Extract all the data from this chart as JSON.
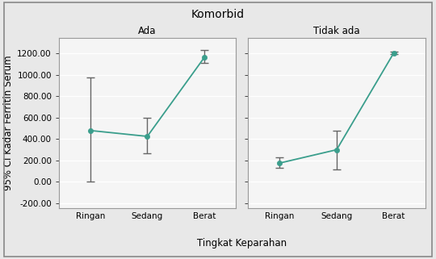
{
  "title": "Komorbid",
  "xlabel": "Tingkat Keparahan",
  "ylabel": "95% CI Kadar Ferritin Serum",
  "panels": [
    {
      "label": "Ada",
      "categories": [
        "Ringan",
        "Sedang",
        "Berat"
      ],
      "means": [
        480,
        425,
        1165
      ],
      "ci_low": [
        0,
        265,
        1110
      ],
      "ci_high": [
        975,
        600,
        1230
      ]
    },
    {
      "label": "Tidak ada",
      "categories": [
        "Ringan",
        "Sedang",
        "Berat"
      ],
      "means": [
        175,
        300,
        1205
      ],
      "ci_low": [
        130,
        115,
        1195
      ],
      "ci_high": [
        230,
        475,
        1215
      ]
    }
  ],
  "ylim": [
    -250,
    1350
  ],
  "yticks": [
    -200.0,
    0.0,
    200.0,
    400.0,
    600.0,
    800.0,
    1000.0,
    1200.0
  ],
  "line_color": "#3a9e8c",
  "marker_color": "#3a9e8c",
  "error_color": "#666666",
  "bg_color": "#e8e8e8",
  "panel_bg": "#f5f5f5",
  "grid_color": "#ffffff",
  "border_color": "#999999",
  "outer_border_color": "#888888",
  "title_fontsize": 10,
  "label_fontsize": 8.5,
  "tick_fontsize": 7.5,
  "panel_label_fontsize": 8.5
}
